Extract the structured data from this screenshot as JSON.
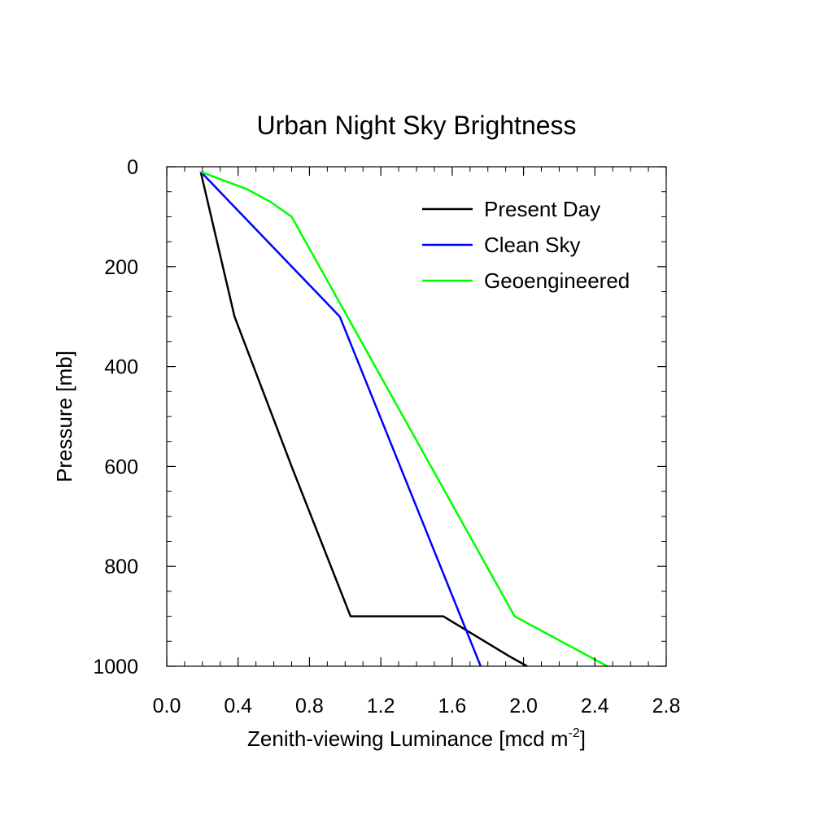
{
  "chart_data": {
    "type": "line",
    "title": "Urban Night Sky Brightness",
    "xlabel_main": "Zenith-viewing Luminance [mcd m",
    "xlabel_sup": "-2",
    "xlabel_end": "]",
    "ylabel": "Pressure [mb]",
    "xlim": [
      0.0,
      2.8
    ],
    "ylim": [
      1000,
      0
    ],
    "y_inverted": true,
    "x_ticks": [
      "0.0",
      "0.4",
      "0.8",
      "1.2",
      "1.6",
      "2.0",
      "2.4",
      "2.8"
    ],
    "y_ticks": [
      "0",
      "200",
      "400",
      "600",
      "800",
      "1000"
    ],
    "legend_position": "top-right",
    "series": [
      {
        "name": "Present Day",
        "color": "#000000",
        "points": [
          [
            0.19,
            10
          ],
          [
            0.38,
            300
          ],
          [
            0.7,
            600
          ],
          [
            1.03,
            900
          ],
          [
            1.55,
            900
          ],
          [
            1.92,
            980
          ],
          [
            2.02,
            1000
          ]
        ]
      },
      {
        "name": "Clean Sky",
        "color": "#0000ff",
        "points": [
          [
            0.19,
            10
          ],
          [
            0.97,
            300
          ],
          [
            1.76,
            1000
          ]
        ]
      },
      {
        "name": "Geoengineered",
        "color": "#00ff00",
        "points": [
          [
            0.19,
            10
          ],
          [
            0.3,
            25
          ],
          [
            0.45,
            45
          ],
          [
            0.58,
            70
          ],
          [
            0.7,
            100
          ],
          [
            1.95,
            900
          ],
          [
            2.47,
            1000
          ]
        ]
      }
    ]
  }
}
